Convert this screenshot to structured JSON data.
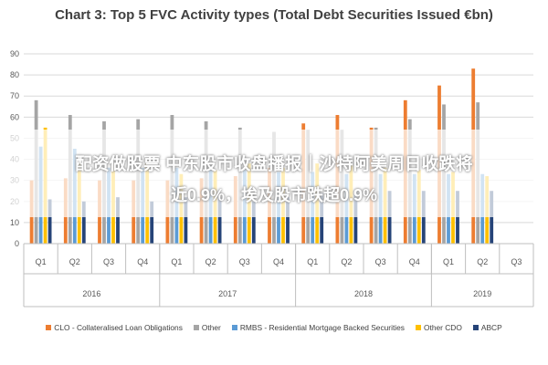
{
  "chart_data": {
    "type": "bar",
    "title": "Chart 3: Top 5 FVC Activity types (Total Debt Securities Issued €bn)",
    "categories": [
      "Q1",
      "Q2",
      "Q3",
      "Q4",
      "Q1",
      "Q2",
      "Q3",
      "Q4",
      "Q1",
      "Q2",
      "Q3",
      "Q4",
      "Q1",
      "Q2",
      "Q3"
    ],
    "groups": [
      {
        "label": "2016",
        "count": 4
      },
      {
        "label": "2017",
        "count": 4
      },
      {
        "label": "2018",
        "count": 4
      },
      {
        "label": "2019",
        "count": 3
      }
    ],
    "ylim": [
      0,
      90
    ],
    "yticks": [
      0,
      10,
      20,
      30,
      40,
      50,
      60,
      70,
      80,
      90
    ],
    "grid": true,
    "legend_position": "bottom",
    "series": [
      {
        "name": "CLO - Collateralised Loan Obligations",
        "color": "#ED7D31",
        "values": [
          30,
          31,
          30,
          30,
          30,
          31,
          32,
          36,
          57,
          61,
          55,
          68,
          75,
          83,
          0
        ]
      },
      {
        "name": "Other",
        "color": "#A5A5A5",
        "values": [
          68,
          61,
          58,
          59,
          61,
          58,
          55,
          53,
          54,
          54,
          55,
          59,
          66,
          67,
          0
        ]
      },
      {
        "name": "RMBS - Residential Mortgage Backed Securities",
        "color": "#5B9BD5",
        "values": [
          46,
          45,
          36,
          36,
          36,
          37,
          35,
          34,
          34,
          33,
          33,
          33,
          33,
          33,
          0
        ]
      },
      {
        "name": "Other CDO",
        "color": "#FFC000",
        "values": [
          55,
          40,
          38,
          38,
          33,
          35,
          38,
          36,
          38,
          37,
          36,
          35,
          34,
          32,
          0
        ]
      },
      {
        "name": "ABCP",
        "color": "#264478",
        "values": [
          21,
          20,
          22,
          20,
          22,
          22,
          20,
          22,
          24,
          25,
          25,
          25,
          25,
          25,
          0
        ]
      }
    ]
  },
  "overlay": {
    "line1": "配资做股票 中东股市收盘播报｜沙特阿美周日收跌将",
    "line2": "近0.9%，埃及股市跌超0.9%"
  }
}
